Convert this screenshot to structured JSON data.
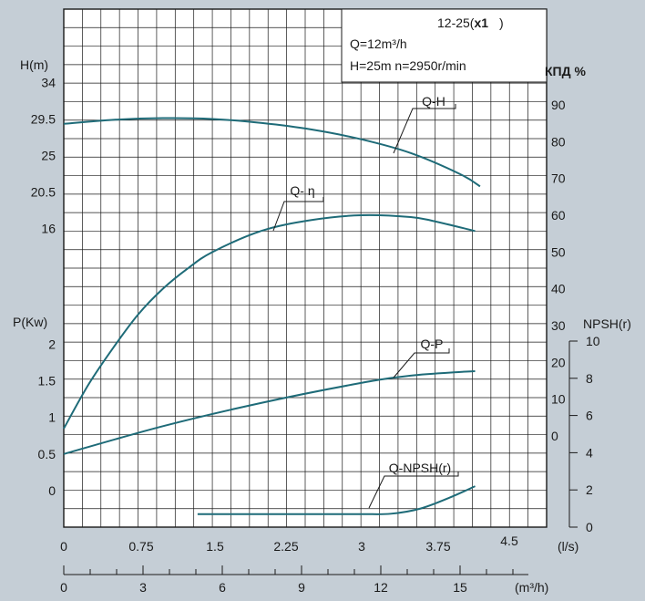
{
  "chart_data": {
    "type": "line",
    "title_lines": [
      "12-25(",
      "x1",
      ")"
    ],
    "annotations": [
      "Q=12m³/h",
      "H=25m  n=2950r/min"
    ],
    "x_ls": {
      "label": "(l/s)",
      "ticks": [
        "0",
        "0.75",
        "1.5",
        "2.25",
        "3",
        "3.75",
        "4.5"
      ],
      "range": [
        0,
        5
      ]
    },
    "x_m3h": {
      "label": "(m³/h)",
      "ticks": [
        "0",
        "3",
        "6",
        "9",
        "12",
        "15"
      ]
    },
    "y_head": {
      "label": "H(m)",
      "ticks": [
        "34",
        "29.5",
        "25",
        "20.5",
        "16"
      ]
    },
    "y_power": {
      "label": "P(Kw)",
      "ticks": [
        "2",
        "1.5",
        "1",
        "0.5",
        "0"
      ]
    },
    "y_eff": {
      "label": "КПД %",
      "ticks": [
        "90",
        "80",
        "70",
        "60",
        "50",
        "40",
        "30",
        "20",
        "10",
        "0"
      ]
    },
    "y_npsh": {
      "label": "NPSH(r)",
      "ticks": [
        "10",
        "8",
        "6",
        "4",
        "2",
        "0"
      ]
    },
    "colors": {
      "curve": "#1e6b78",
      "grid": "#1a1a1a",
      "plot_bg": "#ffffff",
      "page_bg": "#c5ced6"
    },
    "series": [
      {
        "name": "Q-H",
        "unit": "m",
        "x": [
          0,
          0.5,
          1.0,
          1.5,
          2.0,
          2.5,
          3.0,
          3.5,
          4.0,
          4.2
        ],
        "values": [
          28.9,
          29.4,
          29.6,
          29.5,
          29.0,
          28.2,
          27.0,
          25.3,
          22.7,
          21.2
        ]
      },
      {
        "name": "Q- η",
        "unit": "%",
        "x": [
          0,
          0.25,
          0.5,
          0.75,
          1.0,
          1.25,
          1.5,
          2.0,
          2.5,
          3.0,
          3.5,
          3.75,
          4.15
        ],
        "values": [
          2,
          14,
          24,
          33,
          40,
          45.5,
          50,
          55.8,
          58.7,
          60,
          59.5,
          58.3,
          55.7
        ]
      },
      {
        "name": "Q-P",
        "unit": "kW",
        "x": [
          0,
          1.0,
          2.0,
          3.0,
          3.5,
          4.0,
          4.15
        ],
        "values": [
          0.5,
          0.88,
          1.2,
          1.47,
          1.57,
          1.62,
          1.63
        ]
      },
      {
        "name": "Q-NPSH(r)",
        "unit": "m",
        "x": [
          1.35,
          2.0,
          2.5,
          3.0,
          3.3,
          3.6,
          3.9,
          4.15
        ],
        "values": [
          0.7,
          0.7,
          0.7,
          0.7,
          0.72,
          1.0,
          1.6,
          2.2
        ]
      }
    ]
  }
}
